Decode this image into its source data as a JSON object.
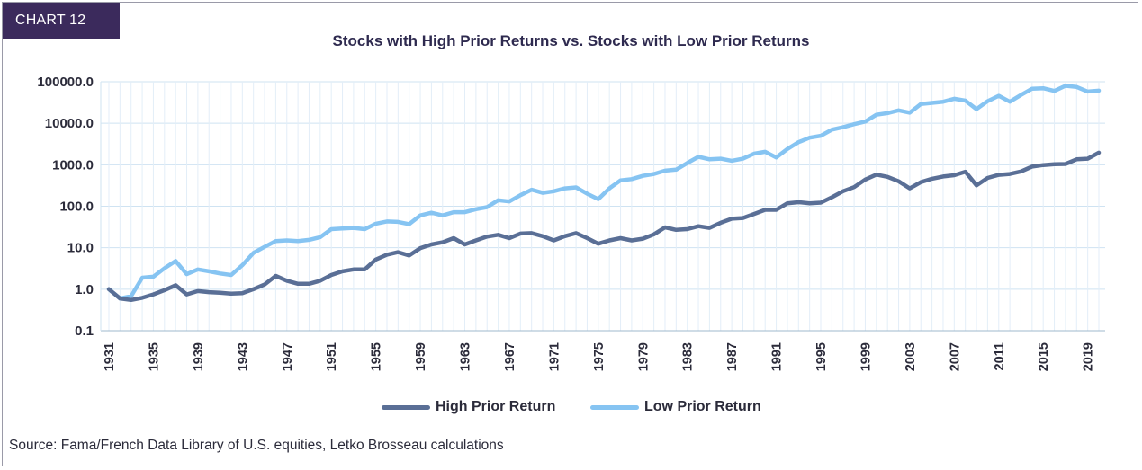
{
  "badge": "CHART 12",
  "source": "Source: Fama/French Data Library of U.S. equities, Letko Brosseau calculations",
  "chart_data": {
    "type": "line",
    "title": "Stocks with High Prior Returns vs. Stocks with Low Prior Returns",
    "xlabel": "",
    "ylabel": "",
    "y_scale": "log",
    "ylim": [
      0.1,
      100000
    ],
    "y_ticks": [
      "100000.0",
      "10000.0",
      "1000.0",
      "100.0",
      "10.0",
      "1.0",
      "0.1"
    ],
    "y_tick_values": [
      100000,
      10000,
      1000,
      100,
      10,
      1,
      0.1
    ],
    "x_ticks": [
      "1931",
      "1935",
      "1939",
      "1943",
      "1947",
      "1951",
      "1955",
      "1959",
      "1963",
      "1967",
      "1971",
      "1975",
      "1979",
      "1983",
      "1987",
      "1991",
      "1995",
      "1999",
      "2003",
      "2007",
      "2011",
      "2015",
      "2019"
    ],
    "grid": true,
    "legend_position": "bottom",
    "x": [
      1931,
      1932,
      1933,
      1934,
      1935,
      1936,
      1937,
      1938,
      1939,
      1940,
      1941,
      1942,
      1943,
      1944,
      1945,
      1946,
      1947,
      1948,
      1949,
      1950,
      1951,
      1952,
      1953,
      1954,
      1955,
      1956,
      1957,
      1958,
      1959,
      1960,
      1961,
      1962,
      1963,
      1964,
      1965,
      1966,
      1967,
      1968,
      1969,
      1970,
      1971,
      1972,
      1973,
      1974,
      1975,
      1976,
      1977,
      1978,
      1979,
      1980,
      1981,
      1982,
      1983,
      1984,
      1985,
      1986,
      1987,
      1988,
      1989,
      1990,
      1991,
      1992,
      1993,
      1994,
      1995,
      1996,
      1997,
      1998,
      1999,
      2000,
      2001,
      2002,
      2003,
      2004,
      2005,
      2006,
      2007,
      2008,
      2009,
      2010,
      2011,
      2012,
      2013,
      2014,
      2015,
      2016,
      2017,
      2018,
      2019,
      2020
    ],
    "series": [
      {
        "name": "High Prior Return",
        "color": "#5a6f96",
        "values": [
          1.0,
          0.6,
          0.55,
          0.62,
          0.75,
          0.95,
          1.25,
          0.75,
          0.9,
          0.85,
          0.82,
          0.78,
          0.8,
          1.0,
          1.3,
          2.1,
          1.6,
          1.35,
          1.35,
          1.6,
          2.2,
          2.7,
          3.0,
          3.0,
          5.2,
          6.8,
          7.8,
          6.5,
          9.8,
          12.0,
          13.5,
          17.0,
          12.0,
          15.0,
          18.5,
          20.5,
          17.0,
          22.0,
          22.5,
          19.0,
          15.0,
          19.0,
          22.5,
          17.0,
          12.5,
          15.0,
          17.0,
          15.0,
          16.5,
          21.0,
          31.0,
          27.0,
          28.0,
          33.0,
          30.0,
          40.0,
          50.0,
          52.0,
          65.0,
          82.0,
          82.0,
          118.0,
          125.0,
          118.0,
          122.0,
          165.0,
          230.0,
          290.0,
          440.0,
          580.0,
          510.0,
          400.0,
          270.0,
          380.0,
          460.0,
          520.0,
          560.0,
          680.0,
          320.0,
          480.0,
          570.0,
          600.0,
          690.0,
          900.0,
          980.0,
          1030.0,
          1040.0,
          1350.0,
          1400.0,
          1950.0
        ]
      },
      {
        "name": "Low Prior Return",
        "color": "#86c4f2",
        "values": [
          1.0,
          0.6,
          0.68,
          1.9,
          2.0,
          3.2,
          4.8,
          2.3,
          3.0,
          2.7,
          2.4,
          2.2,
          3.8,
          7.5,
          10.5,
          14.5,
          15.0,
          14.5,
          15.5,
          18.0,
          28.0,
          29.0,
          30.0,
          28.0,
          38.0,
          43.0,
          42.0,
          37.0,
          60.0,
          70.0,
          60.0,
          72.0,
          72.0,
          85.0,
          95.0,
          140.0,
          130.0,
          185.0,
          250.0,
          210.0,
          230.0,
          270.0,
          285.0,
          200.0,
          148.0,
          270.0,
          420.0,
          450.0,
          540.0,
          600.0,
          720.0,
          760.0,
          1100.0,
          1550.0,
          1350.0,
          1400.0,
          1250.0,
          1400.0,
          1850.0,
          2050.0,
          1500.0,
          2400.0,
          3500.0,
          4500.0,
          5000.0,
          7000.0,
          8000.0,
          9500.0,
          11000.0,
          16000.0,
          17500.0,
          20500.0,
          18000.0,
          29000.0,
          31000.0,
          33000.0,
          39000.0,
          35000.0,
          22000.0,
          34000.0,
          46000.0,
          33000.0,
          48000.0,
          68000.0,
          70000.0,
          60000.0,
          80000.0,
          75000.0,
          58000.0,
          61000.0
        ]
      }
    ]
  }
}
